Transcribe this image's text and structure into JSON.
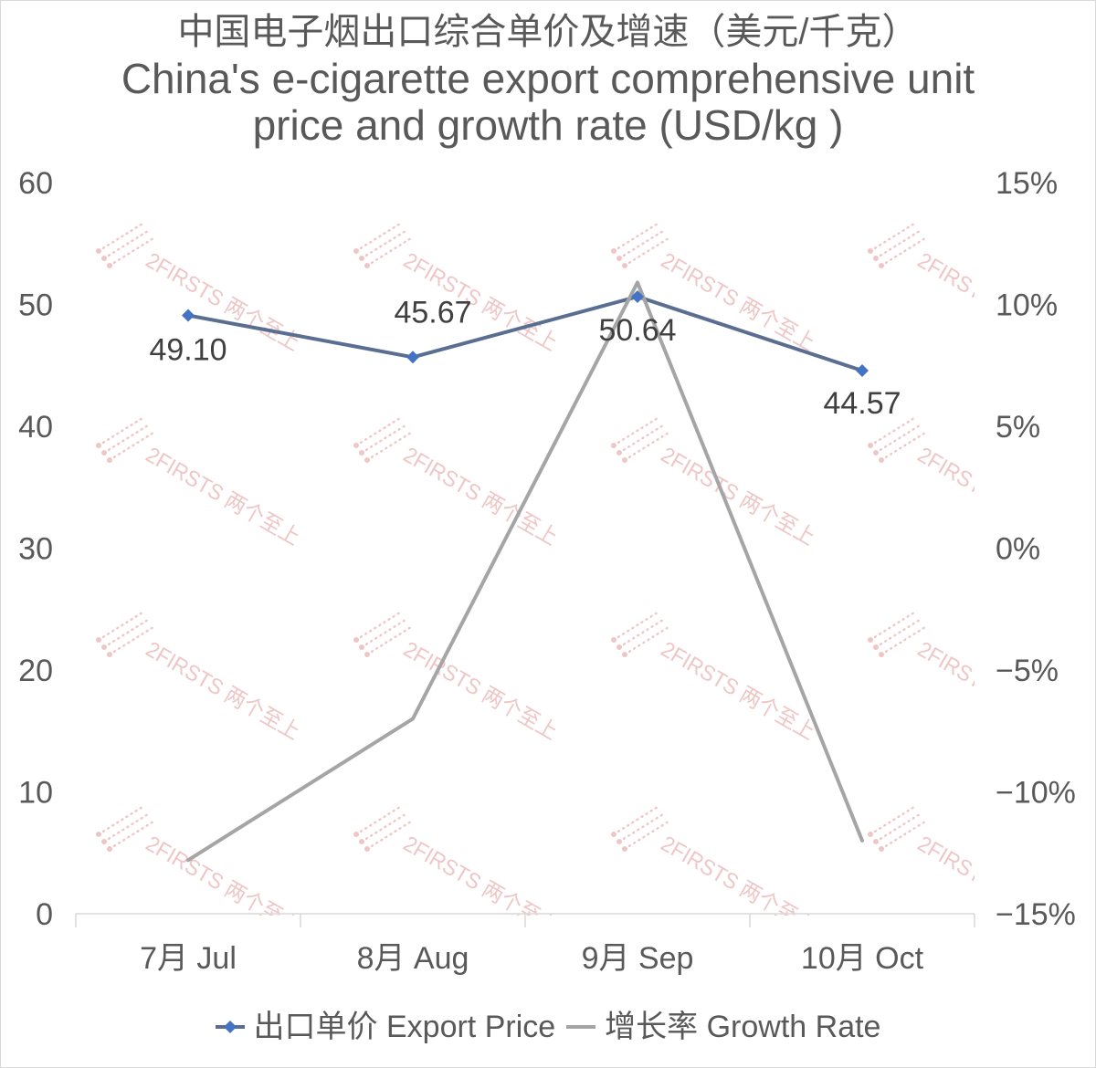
{
  "chart_data": {
    "type": "line",
    "title_lines": [
      "中国电子烟出口综合单价及增速（美元/千克）",
      "China's e-cigarette export comprehensive unit",
      "price and growth rate (USD/kg )"
    ],
    "categories": [
      "7月 Jul",
      "8月 Aug",
      "9月 Sep",
      "10月 Oct"
    ],
    "series": [
      {
        "name": "出口单价 Export Price",
        "axis": "left",
        "values": [
          49.1,
          45.67,
          50.64,
          44.57
        ],
        "data_labels": [
          "49.10",
          "45.67",
          "50.64",
          "44.57"
        ],
        "color": "#5a6e91",
        "marker": "diamond",
        "marker_color": "#4472c4"
      },
      {
        "name": "增长率 Growth Rate",
        "axis": "right",
        "values": [
          -12.8,
          -7.0,
          10.9,
          -12.0
        ],
        "color": "#a5a5a5",
        "marker": "none"
      }
    ],
    "y_left": {
      "ylim": [
        0,
        60
      ],
      "tick_labels": [
        "0",
        "10",
        "20",
        "30",
        "40",
        "50",
        "60"
      ]
    },
    "y_right": {
      "ylim": [
        -15,
        15
      ],
      "tick_labels": [
        "−15%",
        "−10%",
        "−5%",
        "0%",
        "5%",
        "10%",
        "15%"
      ]
    },
    "grid": false,
    "legend": "bottom"
  },
  "watermark": {
    "text": "2FIRSTS 两个至上",
    "color": "#eab3b3"
  }
}
